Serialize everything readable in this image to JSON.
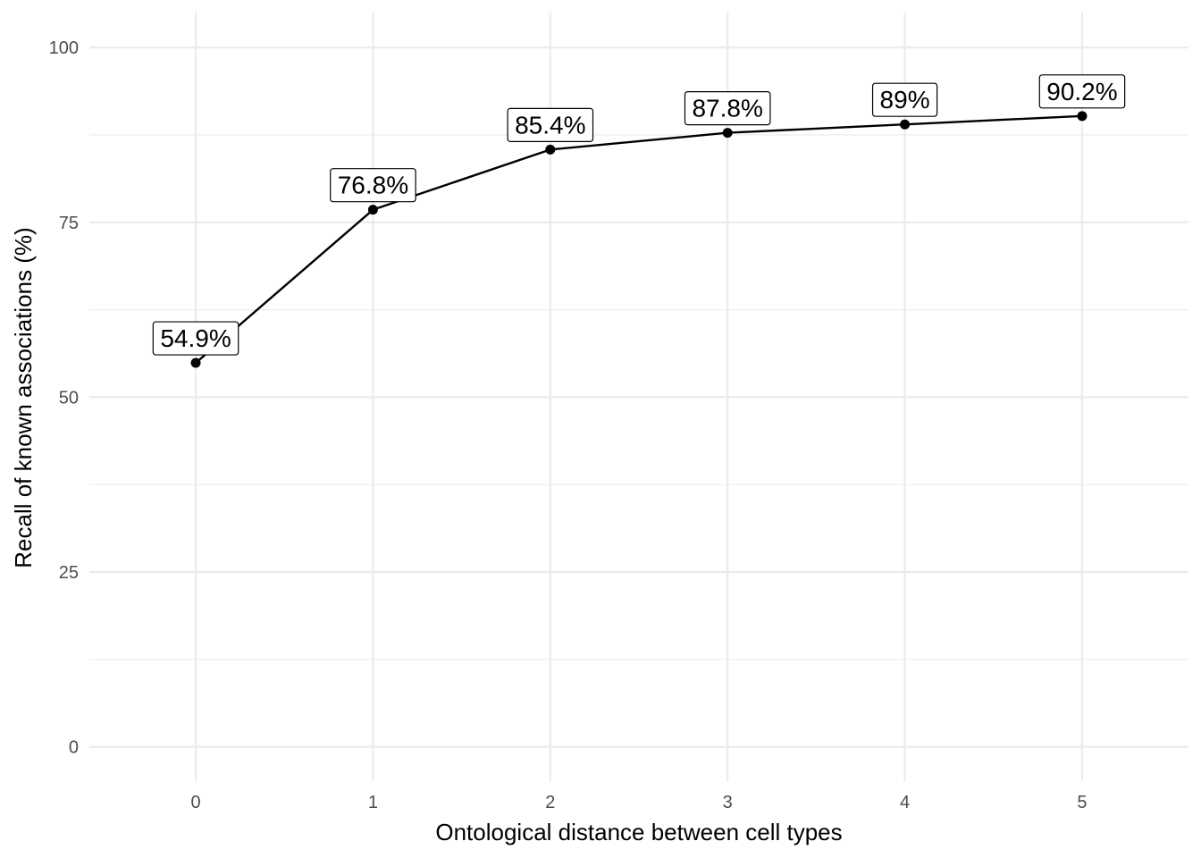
{
  "chart_data": {
    "type": "line",
    "title": "",
    "xlabel": "Ontological distance between cell types",
    "ylabel": "Recall of known associations (%)",
    "x": [
      0,
      1,
      2,
      3,
      4,
      5
    ],
    "values": [
      54.9,
      76.8,
      85.4,
      87.8,
      89,
      90.2
    ],
    "point_labels": [
      "54.9%",
      "76.8%",
      "85.4%",
      "87.8%",
      "89%",
      "90.2%"
    ],
    "x_ticks": [
      "0",
      "1",
      "2",
      "3",
      "4",
      "5"
    ],
    "y_ticks": [
      "0",
      "25",
      "50",
      "75",
      "100"
    ],
    "xlim": [
      -0.6,
      5.6
    ],
    "ylim": [
      -4.9,
      105
    ],
    "grid": true,
    "legend": "none",
    "line_color": "#000000",
    "point_color": "#000000"
  }
}
